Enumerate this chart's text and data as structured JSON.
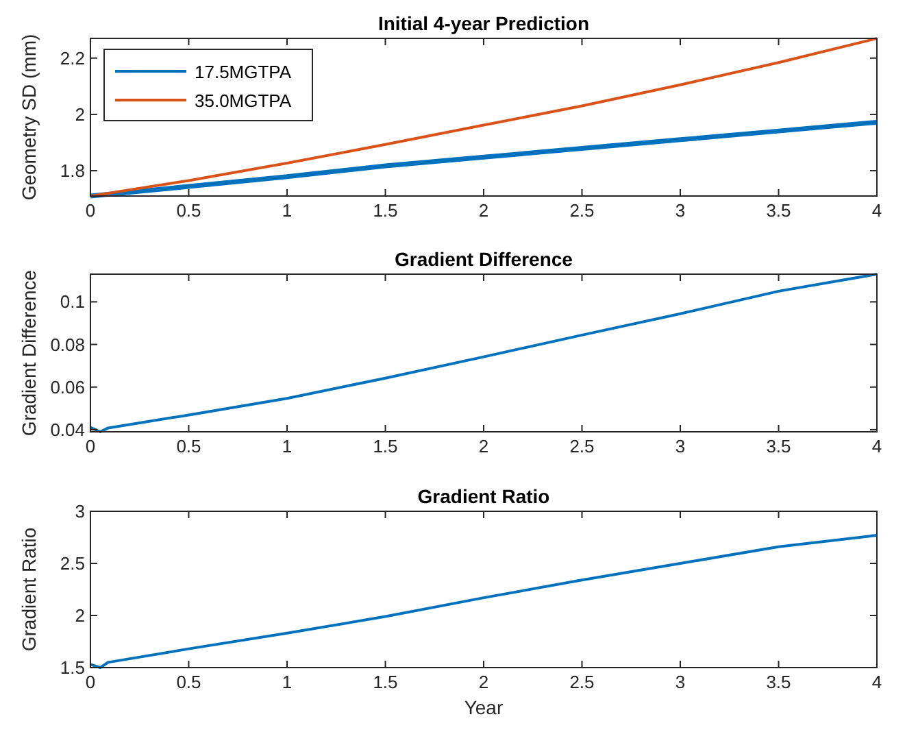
{
  "chart_data": [
    {
      "type": "line",
      "title": "Initial 4-year Prediction",
      "ylabel": "Geometry SD (mm)",
      "legend": "top left",
      "xlim": [
        0,
        4
      ],
      "xticks": [
        0,
        0.5,
        1,
        1.5,
        2,
        2.5,
        3,
        3.5,
        4
      ],
      "ylim": [
        1.71,
        2.27
      ],
      "yticks": [
        1.8,
        2,
        2.2
      ],
      "grid": false,
      "x": [
        0,
        0.5,
        1,
        1.5,
        2,
        2.5,
        3,
        3.5,
        4
      ],
      "series": [
        {
          "name": "17.5MGTPA",
          "color": "#0072bd",
          "values": [
            1.71,
            1.744,
            1.779,
            1.817,
            1.848,
            1.879,
            1.91,
            1.941,
            1.972
          ]
        },
        {
          "name": "35.0MGTPA",
          "color": "#d95319",
          "values": [
            1.71,
            1.765,
            1.827,
            1.893,
            1.962,
            2.03,
            2.105,
            2.184,
            2.27
          ]
        }
      ]
    },
    {
      "type": "line",
      "title": "Gradient Difference",
      "ylabel": "Gradient Difference",
      "xlim": [
        0,
        4
      ],
      "xticks": [
        0,
        0.5,
        1,
        1.5,
        2,
        2.5,
        3,
        3.5,
        4
      ],
      "ylim": [
        0.039,
        0.113
      ],
      "yticks": [
        0.04,
        0.06,
        0.08,
        0.1
      ],
      "grid": false,
      "x": [
        0,
        0.05,
        0.09,
        0.5,
        1,
        1.5,
        2,
        2.5,
        3,
        3.5,
        4
      ],
      "series": [
        {
          "color": "#0072bd",
          "values": [
            0.0411,
            0.039,
            0.0408,
            0.0469,
            0.0547,
            0.0642,
            0.0742,
            0.0844,
            0.0944,
            0.105,
            0.113
          ]
        }
      ]
    },
    {
      "type": "line",
      "title": "Gradient Ratio",
      "ylabel": "Gradient Ratio",
      "xlabel": "Year",
      "xlim": [
        0,
        4
      ],
      "xticks": [
        0,
        0.5,
        1,
        1.5,
        2,
        2.5,
        3,
        3.5,
        4
      ],
      "ylim": [
        1.5,
        3
      ],
      "yticks": [
        1.5,
        2,
        2.5,
        3
      ],
      "grid": false,
      "x": [
        0,
        0.05,
        0.09,
        0.5,
        1,
        1.5,
        2,
        2.5,
        3,
        3.5,
        4
      ],
      "series": [
        {
          "color": "#0072bd",
          "values": [
            1.53,
            1.5,
            1.55,
            1.68,
            1.83,
            1.99,
            2.17,
            2.34,
            2.5,
            2.66,
            2.77
          ]
        }
      ]
    }
  ]
}
